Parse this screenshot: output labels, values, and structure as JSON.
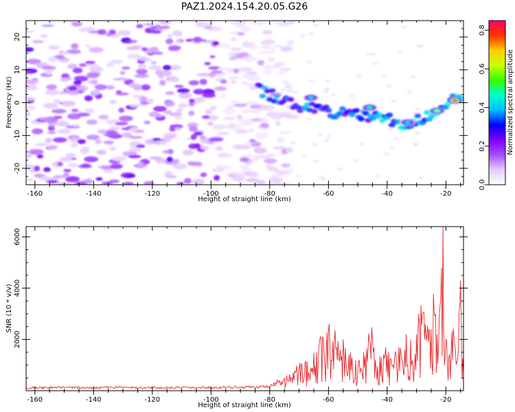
{
  "title": "PAZ1.2024.154.20.05.G26",
  "chart_data": [
    {
      "type": "heatmap",
      "xlabel": "Height of straight line (km)",
      "ylabel": "Frequency (Hz)",
      "xlim": [
        -163,
        -14
      ],
      "ylim": [
        -25,
        25
      ],
      "xticks": [
        -160,
        -140,
        -120,
        -100,
        -80,
        -60,
        -40,
        -20
      ],
      "yticks": [
        -20,
        -10,
        0,
        10,
        20
      ],
      "colorbar": {
        "label": "Normalized spectral amplitude",
        "range": [
          0,
          0.85
        ],
        "ticks": [
          "0.0",
          "0.2",
          "0.4",
          "0.6",
          "0.8"
        ],
        "colormap": [
          "#ffffff",
          "#e6ccff",
          "#a64dff",
          "#7f00ff",
          "#0000ff",
          "#00bfff",
          "#00ffcc",
          "#33ff00",
          "#ccff00",
          "#ffcc00",
          "#ff3300",
          "#ff0066"
        ]
      },
      "signal_trace": {
        "x": [
          -84,
          -76,
          -70,
          -64,
          -58,
          -52,
          -46,
          -40,
          -34,
          -28,
          -24,
          -20,
          -17
        ],
        "y": [
          4,
          1,
          -1,
          -2,
          -3,
          -3.5,
          -4,
          -5,
          -6.5,
          -5,
          -3.5,
          -1,
          1
        ]
      },
      "peaks": [
        {
          "x": -17,
          "y": 0.7,
          "value": 0.82
        },
        {
          "x": -23,
          "y": -2.5,
          "value": 0.6
        },
        {
          "x": -46,
          "y": -1.5,
          "value": 0.5
        },
        {
          "x": -66,
          "y": 1.5,
          "value": 0.45
        },
        {
          "x": -33,
          "y": -6,
          "value": 0.45
        }
      ],
      "noise_region_x": [
        -163,
        -78
      ]
    },
    {
      "type": "line",
      "xlabel": "Height of straight line (km)",
      "ylabel": "SNR (10 * v/v)",
      "xlim": [
        -163,
        -14
      ],
      "ylim": [
        0,
        6400
      ],
      "xticks": [
        -160,
        -140,
        -120,
        -100,
        -80,
        -60,
        -40,
        -20
      ],
      "yticks": [
        2000,
        4000,
        6000
      ],
      "color": "#e8262a",
      "series": [
        {
          "x": [
            -163,
            -150,
            -140,
            -130,
            -120,
            -110,
            -100,
            -90,
            -80,
            -78,
            -75,
            -72,
            -70,
            -68,
            -66,
            -64,
            -62,
            -60,
            -59,
            -58,
            -56,
            -55,
            -54,
            -52,
            -50,
            -48,
            -46,
            -45,
            -44,
            -42,
            -40,
            -38,
            -36,
            -35,
            -34,
            -32,
            -30,
            -29,
            -28,
            -27,
            -26,
            -25,
            -24,
            -23,
            -22,
            -21,
            -20,
            -19,
            -18,
            -17,
            -16,
            -15,
            -14
          ],
          "y": [
            120,
            130,
            120,
            135,
            120,
            130,
            140,
            130,
            170,
            300,
            500,
            700,
            900,
            1100,
            900,
            1500,
            2100,
            2300,
            1200,
            1900,
            1600,
            2000,
            1100,
            1300,
            800,
            1500,
            1900,
            2000,
            1200,
            1300,
            1400,
            1000,
            1700,
            1200,
            1600,
            2000,
            2200,
            2500,
            3000,
            2600,
            1900,
            2400,
            3100,
            2200,
            3300,
            6400,
            2000,
            1300,
            2300,
            1800,
            1200,
            4300,
            700
          ]
        }
      ]
    }
  ]
}
